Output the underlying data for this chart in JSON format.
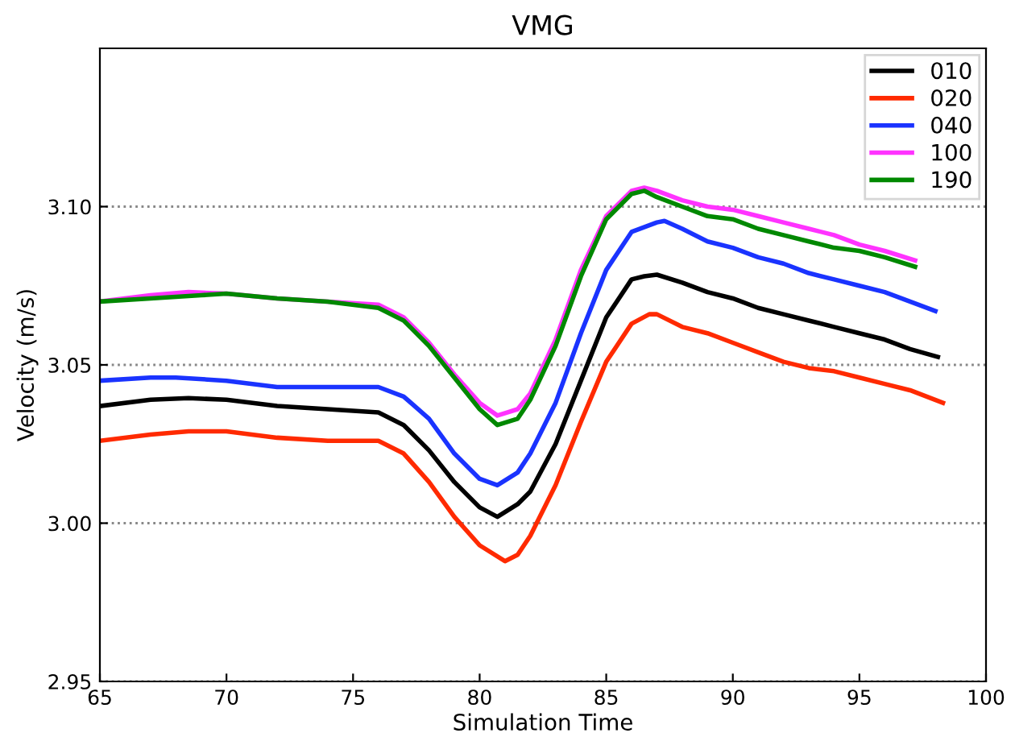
{
  "chart_data": {
    "type": "line",
    "title": "VMG",
    "xlabel": "Simulation Time",
    "ylabel": "Velocity (m/s)",
    "xlim": [
      65,
      100
    ],
    "xticks": [
      65,
      70,
      75,
      80,
      85,
      90,
      95,
      100
    ],
    "ylim": [
      2.95,
      3.15
    ],
    "yticks": [
      {
        "value": 2.95,
        "label": "2.95"
      },
      {
        "value": 3.0,
        "label": "3.00"
      },
      {
        "value": 3.05,
        "label": "3.05"
      },
      {
        "value": 3.1,
        "label": "3.10"
      }
    ],
    "grid": "y",
    "legend": "top right",
    "line_style": "solid",
    "marker": "none",
    "series": [
      {
        "name": "010",
        "color": "#000000",
        "x": [
          65,
          67,
          68.5,
          70,
          72,
          74,
          76,
          77,
          78,
          79,
          80,
          80.7,
          81.5,
          82,
          83,
          84,
          85,
          86,
          86.5,
          87,
          88,
          89,
          90,
          91,
          92,
          93,
          94,
          95,
          96,
          97,
          98.1
        ],
        "values": [
          3.037,
          3.039,
          3.0395,
          3.039,
          3.037,
          3.036,
          3.035,
          3.031,
          3.023,
          3.013,
          3.005,
          3.002,
          3.006,
          3.01,
          3.025,
          3.045,
          3.065,
          3.077,
          3.078,
          3.0785,
          3.076,
          3.073,
          3.071,
          3.068,
          3.066,
          3.064,
          3.062,
          3.06,
          3.058,
          3.055,
          3.0525
        ]
      },
      {
        "name": "020",
        "color": "#ff2a00",
        "x": [
          65,
          67,
          68.5,
          70,
          72,
          74,
          76,
          77,
          78,
          79,
          80,
          81,
          81.5,
          82,
          83,
          84,
          85,
          86,
          86.7,
          87,
          88,
          89,
          90,
          91,
          92,
          93,
          94,
          95,
          96,
          97,
          98.3
        ],
        "values": [
          3.026,
          3.028,
          3.029,
          3.029,
          3.027,
          3.026,
          3.026,
          3.022,
          3.013,
          3.002,
          2.993,
          2.988,
          2.99,
          2.996,
          3.012,
          3.032,
          3.051,
          3.063,
          3.066,
          3.066,
          3.062,
          3.06,
          3.057,
          3.054,
          3.051,
          3.049,
          3.048,
          3.046,
          3.044,
          3.042,
          3.038
        ]
      },
      {
        "name": "040",
        "color": "#1a33ff",
        "x": [
          65,
          67,
          68,
          70,
          72,
          74,
          76,
          77,
          78,
          79,
          80,
          80.7,
          81.5,
          82,
          83,
          84,
          85,
          86,
          87,
          87.3,
          88,
          89,
          90,
          91,
          92,
          93,
          94,
          95,
          96,
          97,
          98
        ],
        "values": [
          3.045,
          3.046,
          3.046,
          3.045,
          3.043,
          3.043,
          3.043,
          3.04,
          3.033,
          3.022,
          3.014,
          3.012,
          3.016,
          3.022,
          3.038,
          3.06,
          3.08,
          3.092,
          3.095,
          3.0955,
          3.093,
          3.089,
          3.087,
          3.084,
          3.082,
          3.079,
          3.077,
          3.075,
          3.073,
          3.07,
          3.067
        ]
      },
      {
        "name": "100",
        "color": "#ff33ff",
        "x": [
          65,
          67,
          68.5,
          70,
          72,
          74,
          76,
          77,
          78,
          79,
          80,
          80.7,
          81.5,
          82,
          83,
          84,
          85,
          86,
          86.5,
          87,
          88,
          89,
          90,
          91,
          92,
          93,
          94,
          95,
          96,
          97.2
        ],
        "values": [
          3.07,
          3.072,
          3.073,
          3.0725,
          3.071,
          3.07,
          3.069,
          3.065,
          3.057,
          3.047,
          3.038,
          3.034,
          3.036,
          3.041,
          3.058,
          3.08,
          3.097,
          3.105,
          3.106,
          3.105,
          3.102,
          3.1,
          3.099,
          3.097,
          3.095,
          3.093,
          3.091,
          3.088,
          3.086,
          3.083
        ]
      },
      {
        "name": "190",
        "color": "#008800",
        "x": [
          65,
          67,
          69,
          70,
          72,
          74,
          76,
          77,
          78,
          79,
          80,
          80.7,
          81.5,
          82,
          83,
          84,
          85,
          86,
          86.5,
          87,
          88,
          89,
          90,
          91,
          92,
          93,
          94,
          95,
          96,
          97.2
        ],
        "values": [
          3.07,
          3.071,
          3.072,
          3.0725,
          3.071,
          3.07,
          3.068,
          3.064,
          3.056,
          3.046,
          3.036,
          3.031,
          3.033,
          3.039,
          3.056,
          3.078,
          3.096,
          3.104,
          3.105,
          3.103,
          3.1,
          3.097,
          3.096,
          3.093,
          3.091,
          3.089,
          3.087,
          3.086,
          3.084,
          3.081
        ]
      }
    ]
  }
}
